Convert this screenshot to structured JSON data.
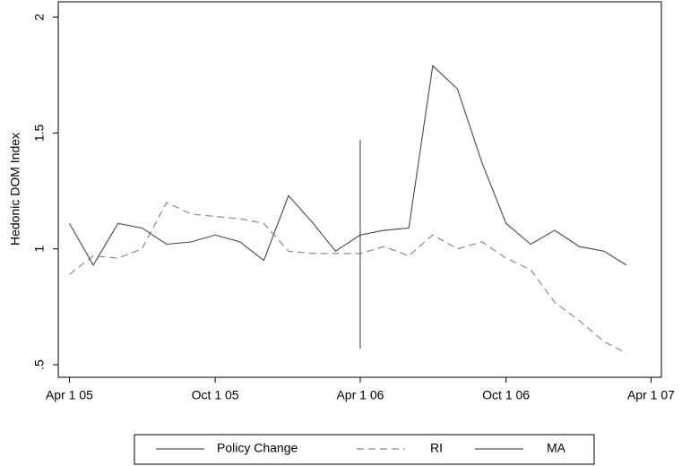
{
  "chart_data": {
    "type": "line",
    "y_label": "Hedonic DOM Index",
    "xlim": [
      "2005-03-18",
      "2007-04-14"
    ],
    "xticks": [
      {
        "value": "2005-04-01",
        "label": "Apr 1 05"
      },
      {
        "value": "2005-10-01",
        "label": "Oct 1 05"
      },
      {
        "value": "2006-04-01",
        "label": "Apr 1 06"
      },
      {
        "value": "2006-10-01",
        "label": "Oct 1 06"
      },
      {
        "value": "2007-04-01",
        "label": "Apr 1 07"
      }
    ],
    "ylim": [
      0.446,
      2.066
    ],
    "yticks": [
      {
        "value": 0.5,
        "label": ".5"
      },
      1,
      1.5,
      2
    ],
    "series": [
      {
        "name": "Policy Change",
        "color": "#555555",
        "dash": false,
        "x": [
          "2006-04-01",
          "2006-04-01"
        ],
        "values": [
          0.57,
          1.47
        ]
      },
      {
        "name": "RI",
        "color": "#888888",
        "dash": true,
        "x": [
          "2005-04-01",
          "2005-05-01",
          "2005-06-01",
          "2005-07-01",
          "2005-08-01",
          "2005-09-01",
          "2005-10-01",
          "2005-11-01",
          "2005-12-01",
          "2006-01-01",
          "2006-02-01",
          "2006-03-01",
          "2006-04-01",
          "2006-05-01",
          "2006-06-01",
          "2006-07-01",
          "2006-08-01",
          "2006-09-01",
          "2006-10-01",
          "2006-11-01",
          "2006-12-01",
          "2007-01-01",
          "2007-02-01",
          "2007-03-01"
        ],
        "values": [
          0.89,
          0.97,
          0.96,
          1.0,
          1.2,
          1.15,
          1.14,
          1.13,
          1.11,
          0.99,
          0.98,
          0.98,
          0.98,
          1.01,
          0.97,
          1.06,
          1.0,
          1.03,
          0.96,
          0.91,
          0.77,
          0.69,
          0.6,
          0.55
        ]
      },
      {
        "name": "MA",
        "color": "#555555",
        "dash": false,
        "x": [
          "2005-04-01",
          "2005-05-01",
          "2005-06-01",
          "2005-07-01",
          "2005-08-01",
          "2005-09-01",
          "2005-10-01",
          "2005-11-01",
          "2005-12-01",
          "2006-01-01",
          "2006-02-01",
          "2006-03-01",
          "2006-04-01",
          "2006-05-01",
          "2006-06-01",
          "2006-07-01",
          "2006-08-01",
          "2006-09-01",
          "2006-10-01",
          "2006-11-01",
          "2006-12-01",
          "2007-01-01",
          "2007-02-01",
          "2007-03-01"
        ],
        "values": [
          1.11,
          0.93,
          1.11,
          1.09,
          1.02,
          1.03,
          1.06,
          1.03,
          0.95,
          1.23,
          1.11,
          0.99,
          1.06,
          1.08,
          1.09,
          1.79,
          1.69,
          1.37,
          1.11,
          1.02,
          1.08,
          1.01,
          0.99,
          0.93
        ]
      }
    ]
  }
}
